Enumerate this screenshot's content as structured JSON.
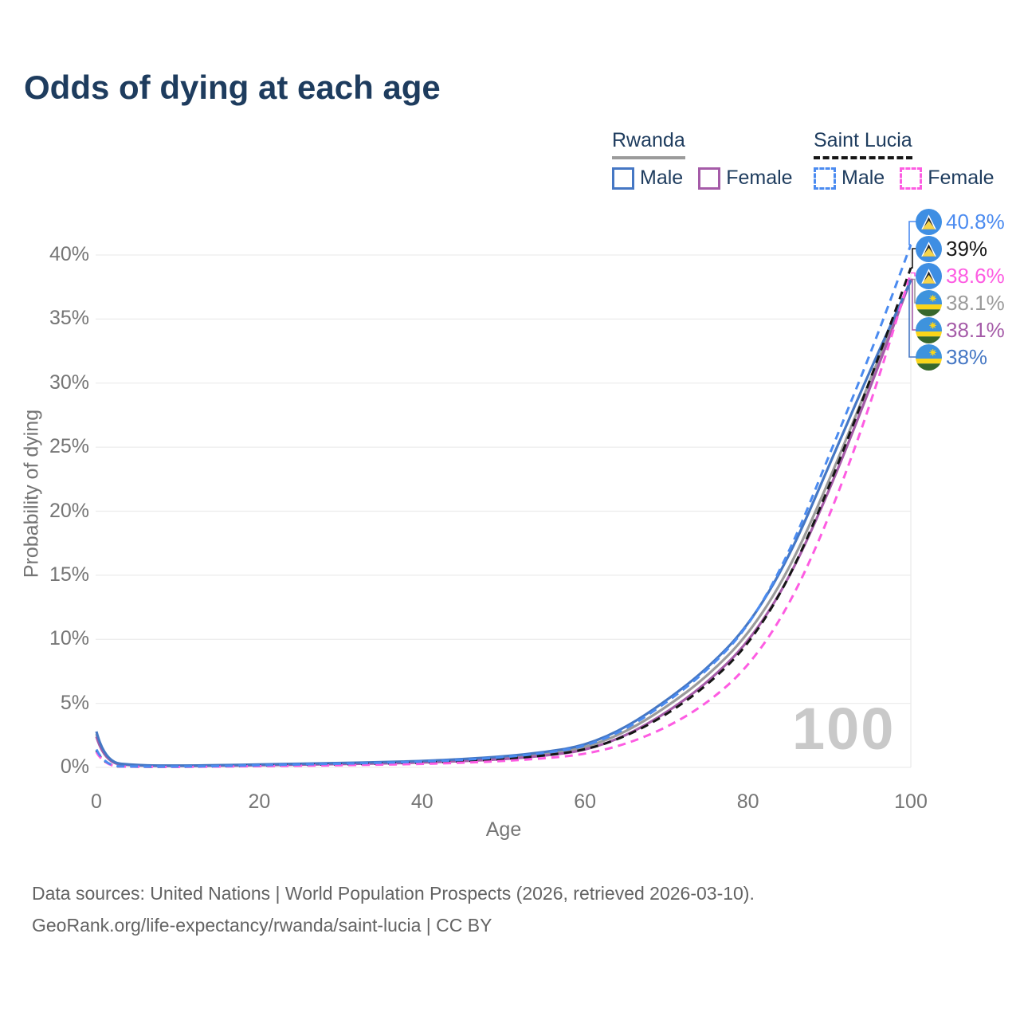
{
  "title": "Odds of dying at each age",
  "watermark": "100",
  "colors": {
    "title_text": "#1e3c5e",
    "axis_text": "#757575",
    "grid": "#ececec",
    "watermark": "#c9c9c9",
    "footer_text": "#636363",
    "rwanda_male": "#4577c4",
    "rwanda_female": "#a55ba8",
    "rwanda_total": "#9b9b9b",
    "saint_lucia_male": "#4b8bf0",
    "saint_lucia_female": "#fd5ce2",
    "saint_lucia_total": "#161616"
  },
  "legend": {
    "groups": [
      {
        "country": "Rwanda",
        "line_style": "solid",
        "underline_color": "#9b9b9b",
        "items": [
          {
            "label": "Male",
            "color": "#4577c4"
          },
          {
            "label": "Female",
            "color": "#a55ba8"
          }
        ]
      },
      {
        "country": "Saint Lucia",
        "line_style": "dashed",
        "underline_color": "#161616",
        "items": [
          {
            "label": "Male",
            "color": "#4b8bf0"
          },
          {
            "label": "Female",
            "color": "#fd5ce2"
          }
        ]
      }
    ]
  },
  "chart_data": {
    "type": "line",
    "title": "Odds of dying at each age",
    "xlabel": "Age",
    "ylabel": "Probability of dying",
    "xlim": [
      0,
      100
    ],
    "ylim": [
      0,
      43
    ],
    "x_ticks": [
      0,
      20,
      40,
      60,
      80,
      100
    ],
    "y_ticks": [
      0,
      5,
      10,
      15,
      20,
      25,
      30,
      35,
      40
    ],
    "y_tick_format": "percent",
    "grid": "horizontal",
    "legend_position": "top-right",
    "ages": [
      0,
      1,
      5,
      10,
      15,
      20,
      25,
      30,
      35,
      40,
      45,
      50,
      55,
      60,
      65,
      70,
      75,
      80,
      85,
      90,
      95,
      100
    ],
    "series": [
      {
        "name": "Saint Lucia male",
        "country": "Saint Lucia",
        "sex": "male",
        "style": "dashed",
        "color": "#4b8bf0",
        "end_label": "40.8%",
        "values": [
          1.4,
          0.1,
          0.06,
          0.06,
          0.1,
          0.17,
          0.23,
          0.29,
          0.36,
          0.45,
          0.58,
          0.79,
          1.1,
          1.62,
          2.95,
          5.05,
          7.55,
          10.9,
          16.6,
          24.4,
          32.2,
          40.8
        ]
      },
      {
        "name": "Saint Lucia both sexes",
        "country": "Saint Lucia",
        "sex": "both",
        "style": "dashed",
        "color": "#161616",
        "end_label": "39%",
        "values": [
          1.3,
          0.09,
          0.05,
          0.05,
          0.08,
          0.14,
          0.19,
          0.24,
          0.3,
          0.37,
          0.48,
          0.65,
          0.92,
          1.35,
          2.4,
          4.1,
          6.4,
          9.5,
          14.6,
          21.9,
          30.2,
          39.0
        ]
      },
      {
        "name": "Saint Lucia female",
        "country": "Saint Lucia",
        "sex": "female",
        "style": "dashed",
        "color": "#fd5ce2",
        "end_label": "38.6%",
        "values": [
          1.2,
          0.08,
          0.05,
          0.04,
          0.06,
          0.1,
          0.13,
          0.17,
          0.21,
          0.27,
          0.36,
          0.5,
          0.7,
          1.02,
          1.8,
          3.1,
          5.0,
          7.8,
          12.5,
          19.5,
          28.2,
          38.6
        ]
      },
      {
        "name": "Rwanda both sexes",
        "country": "Rwanda",
        "sex": "both",
        "style": "solid",
        "color": "#9b9b9b",
        "end_label": "38.1%",
        "values": [
          2.6,
          0.36,
          0.14,
          0.12,
          0.15,
          0.2,
          0.25,
          0.3,
          0.36,
          0.44,
          0.56,
          0.74,
          1.03,
          1.5,
          2.75,
          4.7,
          7.1,
          10.3,
          15.3,
          22.4,
          30.2,
          38.1
        ]
      },
      {
        "name": "Rwanda female",
        "country": "Rwanda",
        "sex": "female",
        "style": "solid",
        "color": "#a55ba8",
        "end_label": "38.1%",
        "values": [
          2.4,
          0.33,
          0.13,
          0.11,
          0.13,
          0.17,
          0.21,
          0.26,
          0.31,
          0.38,
          0.49,
          0.64,
          0.9,
          1.32,
          2.45,
          4.25,
          6.6,
          9.7,
          14.6,
          21.6,
          29.6,
          38.1
        ]
      },
      {
        "name": "Rwanda male",
        "country": "Rwanda",
        "sex": "male",
        "style": "solid",
        "color": "#4577c4",
        "end_label": "38%",
        "values": [
          2.8,
          0.4,
          0.16,
          0.13,
          0.17,
          0.23,
          0.28,
          0.34,
          0.41,
          0.5,
          0.64,
          0.85,
          1.18,
          1.7,
          3.1,
          5.2,
          7.7,
          11.0,
          16.3,
          23.6,
          31.0,
          38.0
        ]
      }
    ]
  },
  "end_labels": [
    {
      "value": "40.8%",
      "flag": "saint-lucia",
      "color": "#4b8bf0"
    },
    {
      "value": "39%",
      "flag": "saint-lucia",
      "color": "#161616"
    },
    {
      "value": "38.6%",
      "flag": "saint-lucia",
      "color": "#fd5ce2"
    },
    {
      "value": "38.1%",
      "flag": "rwanda",
      "color": "#9b9b9b"
    },
    {
      "value": "38.1%",
      "flag": "rwanda",
      "color": "#a55ba8"
    },
    {
      "value": "38%",
      "flag": "rwanda",
      "color": "#4577c4"
    }
  ],
  "footer": {
    "line1": "Data sources: United Nations | World Population Prospects (2026, retrieved 2026-03-10).",
    "line2": "GeoRank.org/life-expectancy/rwanda/saint-lucia | CC BY"
  }
}
